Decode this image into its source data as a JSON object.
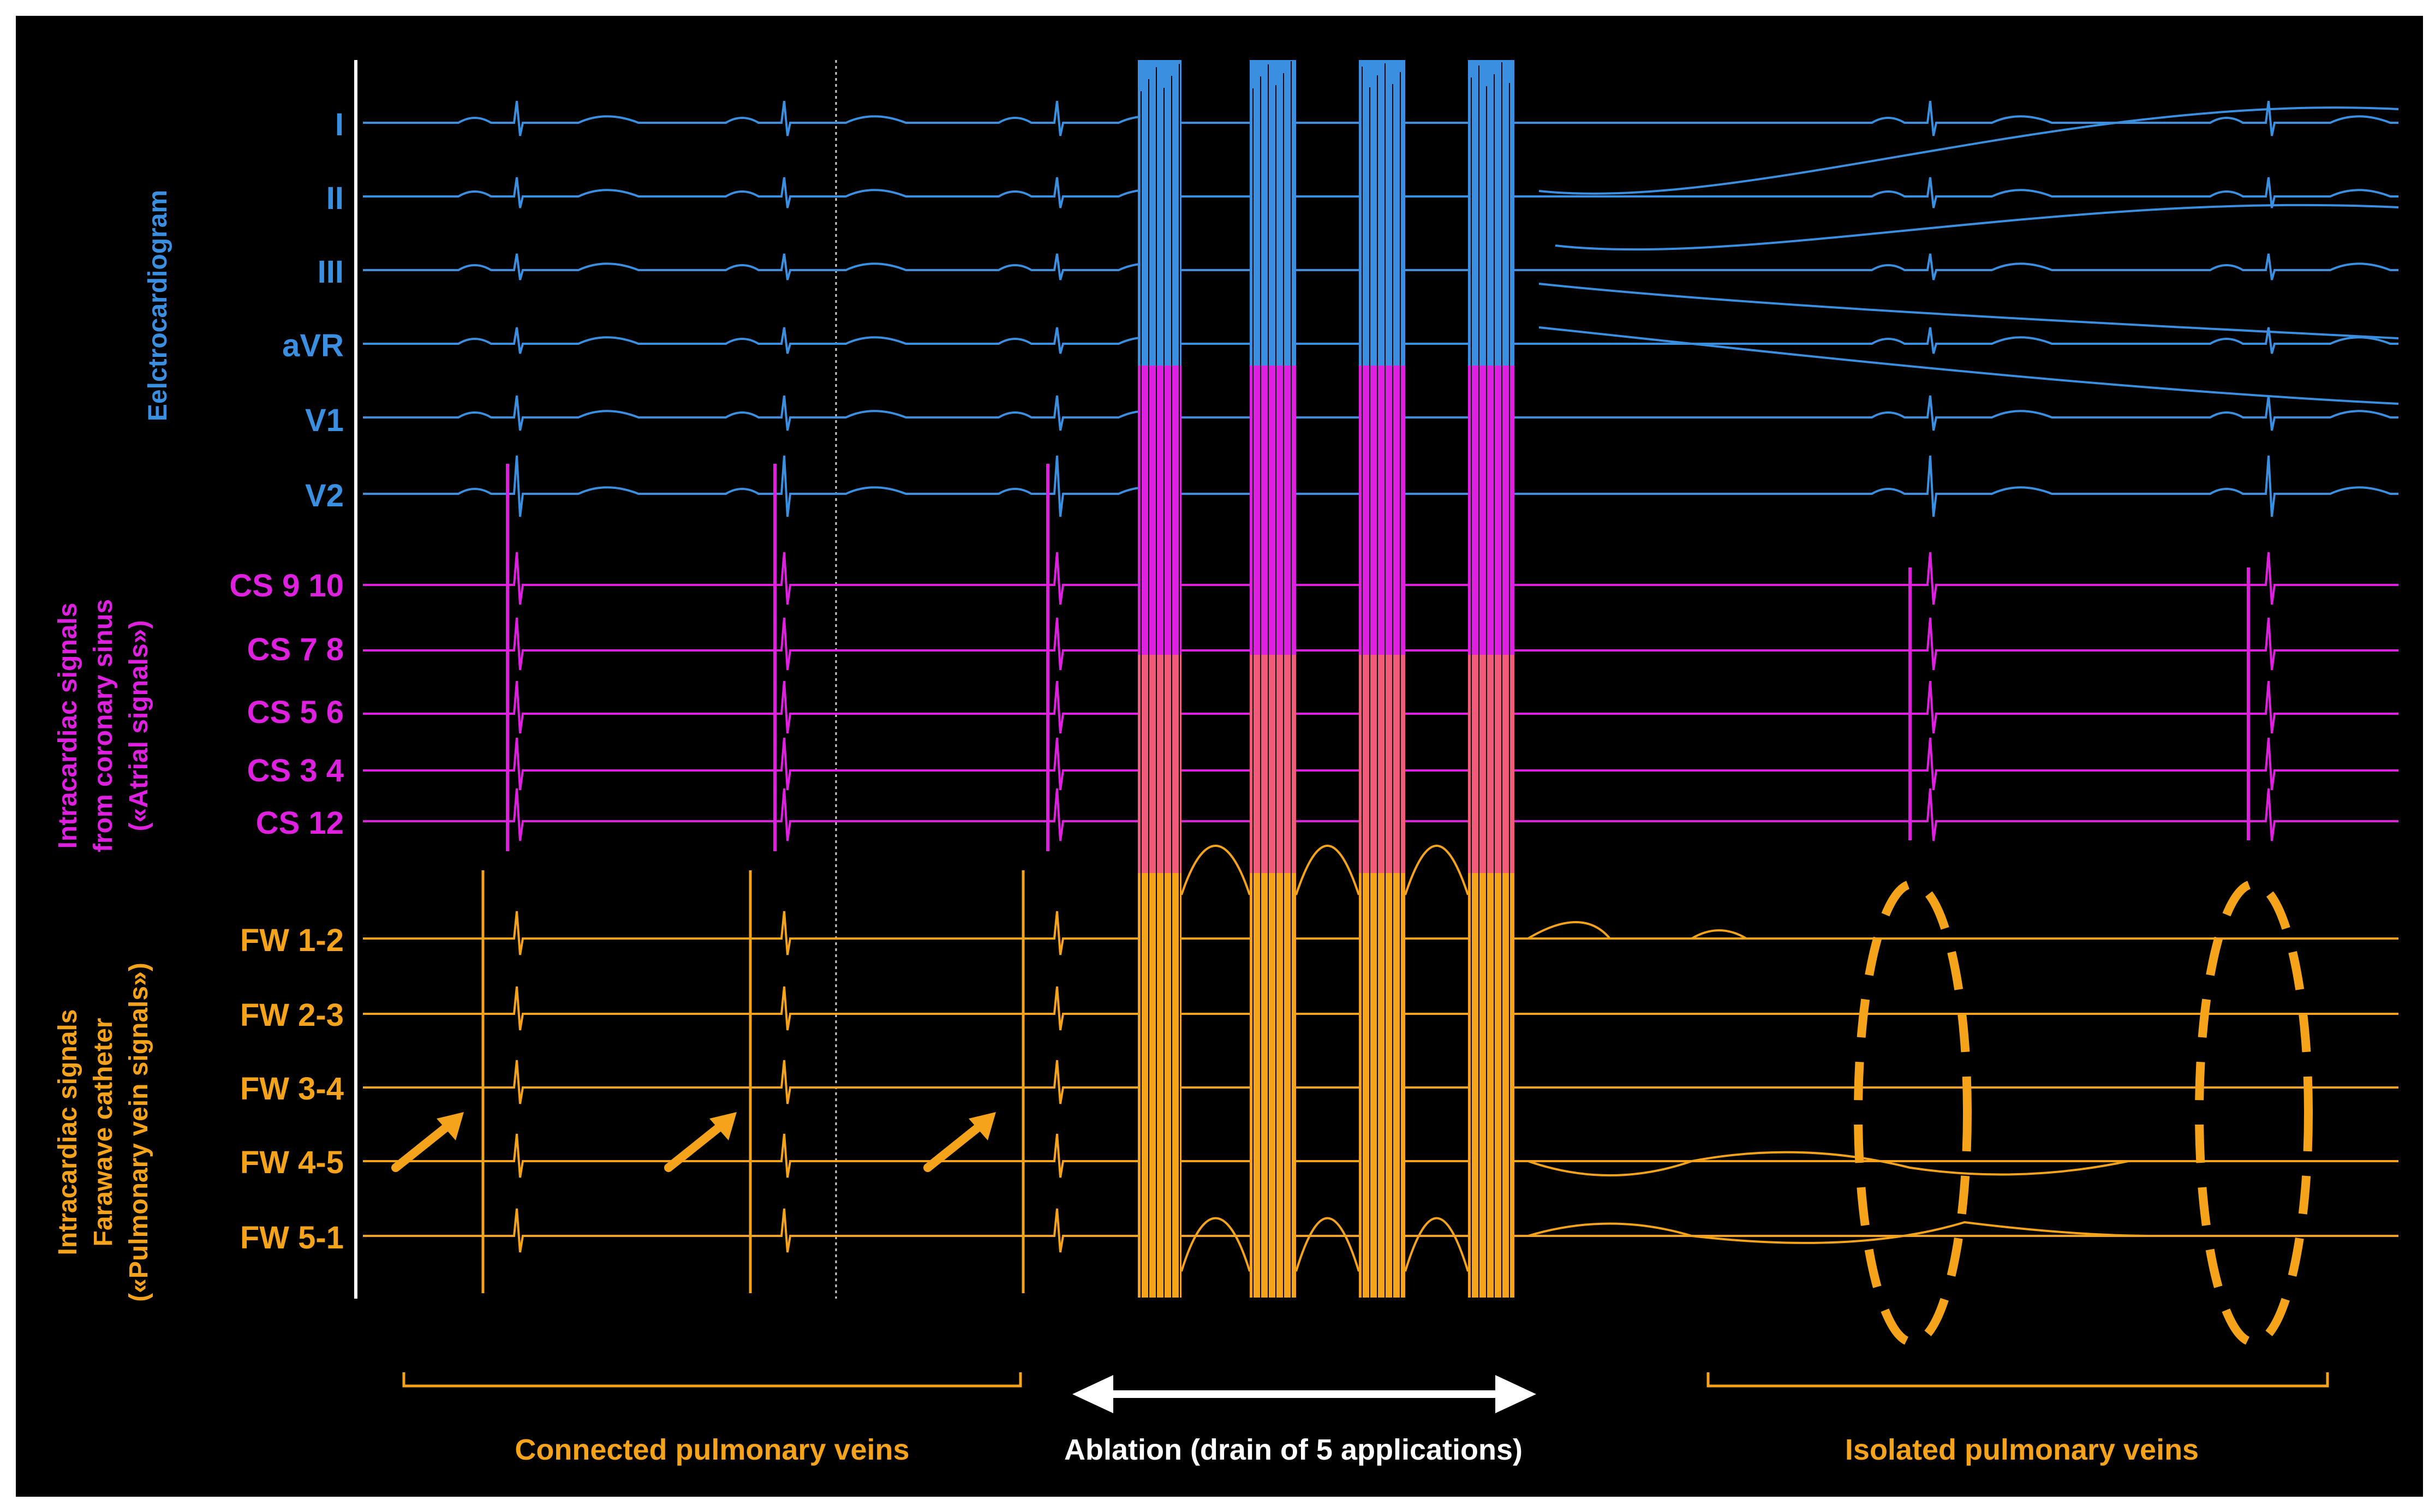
{
  "colors": {
    "background": "#000000",
    "ecg": "#3a8fe0",
    "coronary_sinus": "#e020e0",
    "pulmonary_vein": "#f5a31a",
    "ablation_arrow": "#ffffff"
  },
  "groups": {
    "ecg": "Eelctrocardiogram",
    "cs_line1": "Intracardiac signals",
    "cs_line2": "from coronary sinus",
    "cs_line3": "(«Atrial signals»)",
    "fw_line1": "Intracardiac signals",
    "fw_line2": "Farawave catheter",
    "fw_line3": "(«Pulmonary vein signals»)"
  },
  "leads": {
    "ecg": [
      "I",
      "II",
      "III",
      "aVR",
      "V1",
      "V2"
    ],
    "cs": [
      "CS 9 10",
      "CS 7 8",
      "CS 5 6",
      "CS 3 4",
      "CS 12"
    ],
    "fw": [
      "FW 1-2",
      "FW 2-3",
      "FW 3-4",
      "FW 4-5",
      "FW 5-1"
    ]
  },
  "phases": {
    "connected": "Connected pulmonary veins",
    "ablation": "Ablation (drain of 5 applications)",
    "isolated": "Isolated pulmonary veins"
  },
  "annotations": {
    "arrow_icon": "arrow-up-right-icon",
    "dashed_ellipse": "dashed-ellipse-icon"
  }
}
